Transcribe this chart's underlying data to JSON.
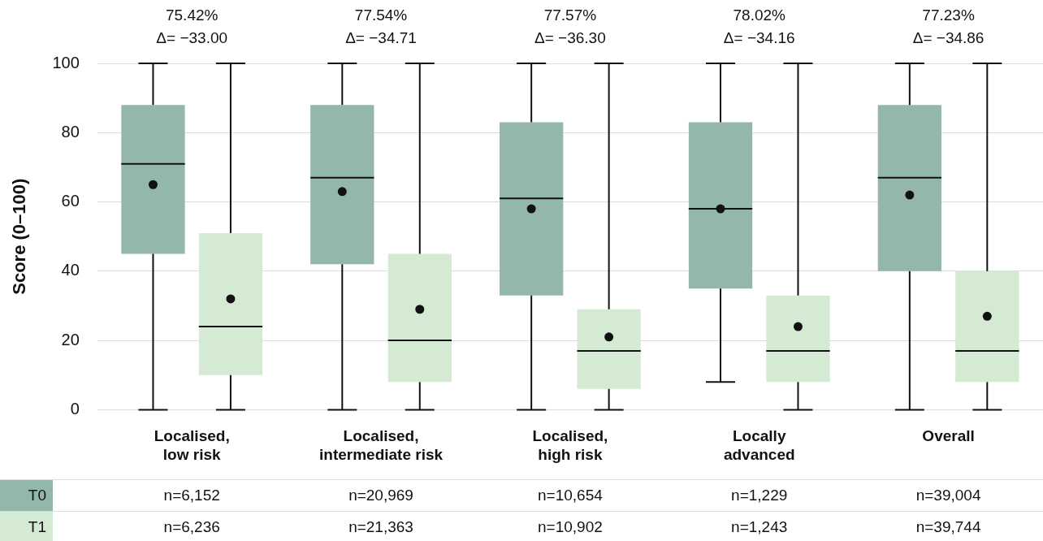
{
  "chart_data": {
    "type": "box",
    "ylabel": "Score (0–100)",
    "categories": [
      "Localised,\nlow risk",
      "Localised,\nintermediate risk",
      "Localised,\nhigh risk",
      "Locally\nadvanced",
      "Overall"
    ],
    "ylim": [
      0,
      100
    ],
    "yticks": [
      0,
      20,
      40,
      60,
      80,
      100
    ],
    "grid": "y",
    "legend": "bottom",
    "annotations": [
      "75.42%\nΔ= −33.00",
      "77.54%\nΔ= −34.71",
      "77.57%\nΔ= −36.30",
      "78.02%\nΔ= −34.16",
      "77.23%\nΔ= −34.86",
      "n=6,152",
      "n=20,969",
      "n=10,654",
      "n=1,229",
      "n=39,004",
      "n=6,236",
      "n=21,363",
      "n=10,902",
      "n=1,243",
      "n=39,744"
    ],
    "series": [
      {
        "name": "T0",
        "color": "#93b8ab",
        "boxes": [
          {
            "low": 0,
            "q1": 45,
            "median": 71,
            "q3": 88,
            "high": 100,
            "mean": 65
          },
          {
            "low": 0,
            "q1": 42,
            "median": 67,
            "q3": 88,
            "high": 100,
            "mean": 63
          },
          {
            "low": 0,
            "q1": 33,
            "median": 61,
            "q3": 83,
            "high": 100,
            "mean": 58
          },
          {
            "low": 8,
            "q1": 35,
            "median": 58,
            "q3": 83,
            "high": 100,
            "mean": 58
          },
          {
            "low": 0,
            "q1": 40,
            "median": 67,
            "q3": 88,
            "high": 100,
            "mean": 62
          }
        ]
      },
      {
        "name": "T1",
        "color": "#d4ead3",
        "boxes": [
          {
            "low": 0,
            "q1": 10,
            "median": 24,
            "q3": 51,
            "high": 100,
            "mean": 32
          },
          {
            "low": 0,
            "q1": 8,
            "median": 20,
            "q3": 45,
            "high": 100,
            "mean": 29
          },
          {
            "low": 0,
            "q1": 6,
            "median": 17,
            "q3": 29,
            "high": 100,
            "mean": 21
          },
          {
            "low": 0,
            "q1": 8,
            "median": 17,
            "q3": 33,
            "high": 100,
            "mean": 24
          },
          {
            "low": 0,
            "q1": 8,
            "median": 17,
            "q3": 40,
            "high": 100,
            "mean": 27
          }
        ]
      }
    ]
  }
}
